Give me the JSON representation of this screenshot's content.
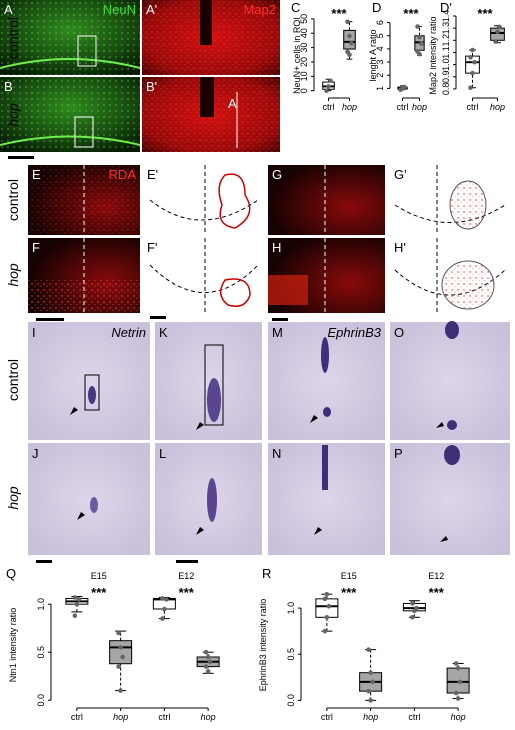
{
  "row_labels": [
    "control",
    "hop",
    "control",
    "hop",
    "control",
    "hop"
  ],
  "panel_labels": [
    "A",
    "A'",
    "B",
    "B'",
    "E",
    "E'",
    "F",
    "F'",
    "G",
    "G'",
    "H",
    "H'",
    "I",
    "K",
    "M",
    "O",
    "J",
    "L",
    "N",
    "P"
  ],
  "markers": [
    "NeuN",
    "Map2",
    "RDA",
    "Netrin",
    "EphrinB3"
  ],
  "inset_label": "A",
  "chart_data": [
    {
      "type": "box",
      "label": "C",
      "ylabel": "NeuN+ cells in ROI",
      "categories": [
        "ctrl",
        "hop"
      ],
      "boxes": [
        [
          0,
          1,
          3,
          6,
          8
        ],
        [
          22,
          29,
          34,
          42,
          48
        ]
      ],
      "points": [
        [
          0,
          3,
          7
        ],
        [
          48,
          38,
          33,
          27,
          25
        ]
      ],
      "colors": [
        "#ffffff",
        "#a6a6a6"
      ],
      "annotations": [
        "***"
      ],
      "ylim": [
        -3,
        52
      ],
      "yticks": [
        0,
        10,
        20,
        30,
        40,
        50
      ]
    },
    {
      "type": "box",
      "label": "D",
      "ylabel": "lenght A ratio",
      "categories": [
        "ctrl",
        "hop"
      ],
      "boxes": [
        [
          0.9,
          0.95,
          1.0,
          1.1,
          1.2
        ],
        [
          3.5,
          3.9,
          4.5,
          5.0,
          5.7
        ]
      ],
      "points": [
        [
          0.9,
          1.0,
          1.1
        ],
        [
          5.7,
          4.9,
          4.4,
          3.8,
          3.6
        ]
      ],
      "colors": [
        "#ffffff",
        "#a6a6a6"
      ],
      "annotations": [
        "***"
      ],
      "ylim": [
        0.5,
        6.5
      ],
      "yticks": [
        1,
        2,
        3,
        4,
        5,
        6
      ]
    },
    {
      "type": "box",
      "label": "D'",
      "ylabel": "Map2 intensity ratio",
      "categories": [
        "ctrl",
        "hop"
      ],
      "boxes": [
        [
          0.81,
          0.93,
          1.02,
          1.07,
          1.12
        ],
        [
          1.18,
          1.2,
          1.26,
          1.3,
          1.32
        ]
      ],
      "points": [
        [
          0.81,
          0.93,
          1.02,
          1.06,
          1.12
        ],
        [
          1.19,
          1.27,
          1.31
        ]
      ],
      "colors": [
        "#ffffff",
        "#a6a6a6"
      ],
      "annotations": [
        "***"
      ],
      "ylim": [
        0.75,
        1.4
      ],
      "yticks": [
        0.8,
        0.9,
        {
          "value": 1.0,
          "label": "1.0"
        },
        1.1,
        1.2,
        1.3,
        1.4
      ]
    },
    {
      "type": "box",
      "label": "Q",
      "ylabel": "Ntn1 intensity ratio",
      "categories": [
        "ctrl",
        "hop",
        "ctrl",
        "hop"
      ],
      "groups": [
        "E15",
        "E12"
      ],
      "boxes": [
        [
          0.92,
          1.0,
          1.03,
          1.06,
          1.08
        ],
        [
          0.1,
          0.38,
          0.55,
          0.62,
          0.72
        ],
        [
          0.85,
          0.95,
          1.05,
          1.06,
          1.07
        ],
        [
          0.28,
          0.35,
          0.4,
          0.45,
          0.5
        ]
      ],
      "points": [
        [
          0.88,
          1.0,
          1.05,
          1.07
        ],
        [
          0.7,
          0.55,
          0.45,
          0.35,
          0.1
        ],
        [
          0.85,
          0.95,
          1.05,
          1.06
        ],
        [
          0.5,
          0.45,
          0.4,
          0.35,
          0.3
        ]
      ],
      "colors": [
        "#ffffff",
        "#a6a6a6",
        "#ffffff",
        "#a6a6a6"
      ],
      "annotations": [
        "***",
        "***"
      ],
      "ylim": [
        -0.05,
        1.2
      ],
      "yticks": [
        {
          "value": 0.0,
          "label": "0.0"
        },
        0.5,
        {
          "value": 1.0,
          "label": "1.0"
        }
      ]
    },
    {
      "type": "box",
      "label": "R",
      "ylabel": "EphrinB3 intensity ratio",
      "categories": [
        "ctrl",
        "hop",
        "ctrl",
        "hop"
      ],
      "groups": [
        "E15",
        "E12"
      ],
      "boxes": [
        [
          0.75,
          0.9,
          1.02,
          1.1,
          1.15
        ],
        [
          0.0,
          0.1,
          0.2,
          0.3,
          0.55
        ],
        [
          0.9,
          0.97,
          1.0,
          1.05,
          1.08
        ],
        [
          0.02,
          0.08,
          0.2,
          0.35,
          0.4
        ]
      ],
      "points": [
        [
          0.75,
          0.9,
          1.02,
          1.1,
          1.15
        ],
        [
          0.55,
          0.3,
          0.2,
          0.1,
          0.0
        ],
        [
          0.9,
          0.97,
          1.0,
          1.05
        ],
        [
          0.4,
          0.35,
          0.2,
          0.08,
          0.02
        ]
      ],
      "colors": [
        "#ffffff",
        "#a6a6a6",
        "#ffffff",
        "#a6a6a6"
      ],
      "annotations": [
        "***",
        "***"
      ],
      "ylim": [
        -0.05,
        1.25
      ],
      "yticks": [
        {
          "value": 0.0,
          "label": "0.0"
        },
        0.5,
        {
          "value": 1.0,
          "label": "1.0"
        }
      ]
    }
  ]
}
